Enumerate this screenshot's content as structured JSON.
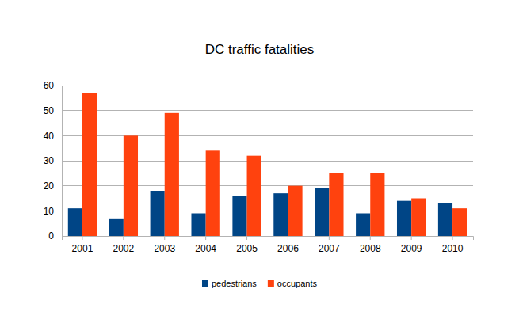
{
  "chart_data": {
    "type": "bar",
    "title": "DC traffic fatalities",
    "categories": [
      "2001",
      "2002",
      "2003",
      "2004",
      "2005",
      "2006",
      "2007",
      "2008",
      "2009",
      "2010"
    ],
    "series": [
      {
        "name": "pedestrians",
        "color": "#004586",
        "values": [
          11,
          7,
          18,
          9,
          16,
          17,
          19,
          9,
          14,
          13
        ]
      },
      {
        "name": "occupants",
        "color": "#ff420e",
        "values": [
          57,
          40,
          49,
          34,
          32,
          20,
          25,
          25,
          15,
          11
        ]
      }
    ],
    "ylim": [
      0,
      60
    ],
    "yticks": [
      0,
      10,
      20,
      30,
      40,
      50,
      60
    ],
    "grid": true,
    "legend": "bottom"
  }
}
